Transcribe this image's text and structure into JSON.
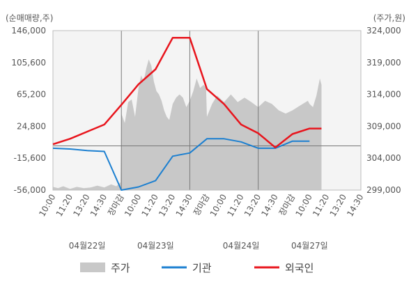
{
  "colors": {
    "price": "#c8c8c8",
    "inst": "#1b7fd0",
    "foreign": "#e8141c",
    "plot_bg": "#f4f4f4",
    "close_label": "#e8141c"
  },
  "chart_data": {
    "type": "line",
    "left_unit": "(순매매량,주)",
    "right_unit": "(주가,원)",
    "left_ticks": [
      "146,000",
      "105,600",
      "65,200",
      "24,800",
      "-15,600",
      "-56,000"
    ],
    "right_ticks": [
      "324,000",
      "319,000",
      "314,000",
      "309,000",
      "304,000",
      "299,000"
    ],
    "left_ylim": [
      -56000,
      146000
    ],
    "right_ylim": [
      299000,
      324000
    ],
    "baseline_left": 0,
    "x_labels": [
      "10:00",
      "11:20",
      "13:20",
      "14:30",
      "장마감",
      "10:00",
      "11:20",
      "13:20",
      "14:30",
      "장마감",
      "10:00",
      "11:20",
      "13:20",
      "14:30",
      "장마감",
      "10:00",
      "11:20",
      "13:20",
      "14:30"
    ],
    "x_label_highlight": [
      "장마감"
    ],
    "dates": [
      {
        "label": "04월22일",
        "slot": 2
      },
      {
        "label": "04월23일",
        "slot": 6
      },
      {
        "label": "04월24일",
        "slot": 11
      },
      {
        "label": "04월27일",
        "slot": 15
      }
    ],
    "day_boundaries": [
      4,
      8,
      12
    ],
    "series": [
      {
        "name": "기관",
        "color": "#1b7fd0",
        "axis": "left",
        "x": [
          0,
          1,
          2,
          3,
          4,
          5,
          6,
          7,
          8,
          9,
          10,
          11,
          12,
          13,
          14,
          15
        ],
        "values": [
          -3000,
          -4000,
          -6000,
          -7000,
          -56000,
          -52000,
          -44000,
          -13000,
          -9000,
          9000,
          9000,
          5000,
          -3000,
          -3000,
          6000,
          6000
        ]
      },
      {
        "name": "외국인",
        "color": "#e8141c",
        "axis": "left",
        "x": [
          0,
          1,
          2,
          3,
          4,
          5,
          6,
          7,
          8,
          9,
          10,
          11,
          12,
          13,
          14,
          15,
          15.7
        ],
        "values": [
          2000,
          9000,
          18000,
          27000,
          52000,
          78000,
          97000,
          137000,
          137000,
          72000,
          53000,
          27000,
          16000,
          -2000,
          15000,
          22000,
          22000
        ]
      },
      {
        "name": "주가",
        "color": "#c8c8c8",
        "axis": "right",
        "x": [
          0,
          0.3,
          0.6,
          1,
          1.4,
          1.8,
          2.2,
          2.6,
          3,
          3.4,
          3.7,
          3.95,
          4,
          4.2,
          4.4,
          4.6,
          4.8,
          5,
          5.15,
          5.3,
          5.45,
          5.6,
          5.75,
          5.9,
          6.05,
          6.2,
          6.35,
          6.5,
          6.65,
          6.8,
          7,
          7.2,
          7.4,
          7.6,
          7.8,
          8,
          8.2,
          8.4,
          8.6,
          8.8,
          8.95,
          9,
          9.3,
          9.6,
          10,
          10.4,
          10.8,
          11.2,
          11.6,
          12,
          12.4,
          12.8,
          13.2,
          13.6,
          14,
          14.3,
          14.6,
          14.9,
          15,
          15.2,
          15.4,
          15.6,
          15.7
        ],
        "values": [
          299500,
          299300,
          299600,
          299200,
          299500,
          299300,
          299400,
          299700,
          299400,
          299900,
          299600,
          300200,
          311000,
          309500,
          312800,
          313200,
          310500,
          315000,
          317000,
          316000,
          318000,
          319500,
          318500,
          316000,
          314500,
          314000,
          313000,
          311500,
          310500,
          310000,
          312500,
          313500,
          314000,
          313500,
          312000,
          313000,
          314500,
          316500,
          315000,
          315500,
          315000,
          310500,
          312500,
          313800,
          312800,
          314000,
          312800,
          313500,
          312800,
          312000,
          313000,
          312500,
          311500,
          311000,
          311500,
          312000,
          312500,
          313000,
          312500,
          312000,
          313800,
          316500,
          315500
        ]
      }
    ],
    "legend": {
      "placement": "bottom",
      "items": [
        {
          "label": "주가",
          "kind": "area",
          "color": "#c8c8c8"
        },
        {
          "label": "기관",
          "kind": "line",
          "color": "#1b7fd0"
        },
        {
          "label": "외국인",
          "kind": "line",
          "color": "#e8141c"
        }
      ]
    }
  }
}
